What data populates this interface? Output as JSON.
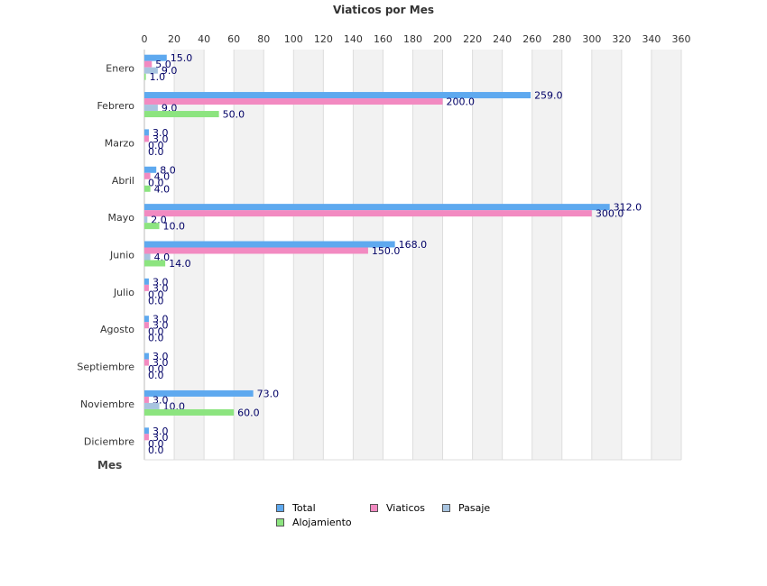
{
  "chart_data": {
    "type": "bar",
    "orientation": "horizontal",
    "title": "Viaticos por Mes",
    "xlabel": "",
    "ylabel": "Mes",
    "xlim": [
      0,
      360
    ],
    "x_ticks": [
      "0",
      "20",
      "40",
      "60",
      "80",
      "100",
      "120",
      "140",
      "160",
      "180",
      "200",
      "220",
      "240",
      "260",
      "280",
      "300",
      "320",
      "340",
      "360"
    ],
    "grid": true,
    "legend_position": "bottom",
    "categories": [
      "Enero",
      "Febrero",
      "Marzo",
      "Abril",
      "Mayo",
      "Junio",
      "Julio",
      "Agosto",
      "Septiembre",
      "Noviembre",
      "Diciembre"
    ],
    "series": [
      {
        "name": "Total",
        "color": "#5ea9ef",
        "values": [
          15.0,
          259.0,
          3.0,
          8.0,
          312.0,
          168.0,
          3.0,
          3.0,
          3.0,
          73.0,
          3.0
        ]
      },
      {
        "name": "Viaticos",
        "color": "#f28ac1",
        "values": [
          5.0,
          200.0,
          3.0,
          4.0,
          300.0,
          150.0,
          3.0,
          3.0,
          3.0,
          3.0,
          3.0
        ]
      },
      {
        "name": "Pasaje",
        "color": "#a8c4e0",
        "values": [
          9.0,
          9.0,
          0.0,
          0.0,
          2.0,
          4.0,
          0.0,
          0.0,
          0.0,
          10.0,
          0.0
        ]
      },
      {
        "name": "Alojamiento",
        "color": "#8ce47f",
        "values": [
          1.0,
          50.0,
          0.0,
          4.0,
          10.0,
          14.0,
          0.0,
          0.0,
          0.0,
          60.0,
          0.0
        ]
      }
    ],
    "value_labels": [
      [
        "15.0",
        "5.0",
        "9.0",
        "1.0"
      ],
      [
        "259.0",
        "200.0",
        "9.0",
        "50.0"
      ],
      [
        "3.0",
        "3.0",
        "0.0",
        "0.0"
      ],
      [
        "8.0",
        "4.0",
        "0.0",
        "4.0"
      ],
      [
        "312.0",
        "300.0",
        "2.0",
        "10.0"
      ],
      [
        "168.0",
        "150.0",
        "4.0",
        "14.0"
      ],
      [
        "3.0",
        "3.0",
        "0.0",
        "0.0"
      ],
      [
        "3.0",
        "3.0",
        "0.0",
        "0.0"
      ],
      [
        "3.0",
        "3.0",
        "0.0",
        "0.0"
      ],
      [
        "73.0",
        "3.0",
        "10.0",
        "60.0"
      ],
      [
        "3.0",
        "3.0",
        "0.0",
        "0.0"
      ]
    ]
  }
}
